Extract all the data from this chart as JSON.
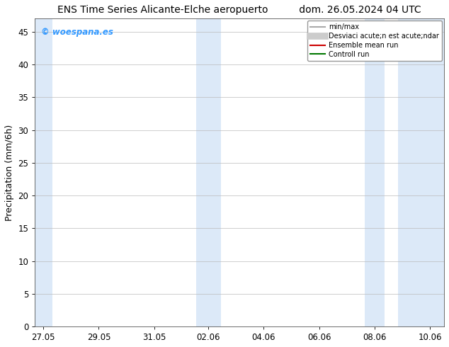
{
  "title_left": "ENS Time Series Alicante-Elche aeropuerto",
  "title_right": "dom. 26.05.2024 04 UTC",
  "ylabel": "Precipitation (mm/6h)",
  "ylim": [
    0,
    47
  ],
  "yticks": [
    0,
    5,
    10,
    15,
    20,
    25,
    30,
    35,
    40,
    45
  ],
  "bg_color": "#ffffff",
  "plot_bg_color": "#ffffff",
  "shaded_color": "#dce9f8",
  "x_ticks_labels": [
    "27.05",
    "29.05",
    "31.05",
    "02.06",
    "04.06",
    "06.06",
    "08.06",
    "10.06"
  ],
  "x_ticks_pos": [
    27.05,
    29.05,
    31.05,
    33.0,
    35.0,
    37.0,
    39.0,
    41.0
  ],
  "xlim": [
    26.75,
    41.5
  ],
  "watermark_text": "© woespana.es",
  "watermark_color": "#3399ff",
  "legend_entries": [
    {
      "label": "min/max",
      "color": "#aaaaaa",
      "lw": 1.5
    },
    {
      "label": "Desviaci acute;n est acute;ndar",
      "color": "#cccccc",
      "lw": 7
    },
    {
      "label": "Ensemble mean run",
      "color": "#cc0000",
      "lw": 1.5
    },
    {
      "label": "Controll run",
      "color": "#007700",
      "lw": 1.5
    }
  ],
  "title_fontsize": 10,
  "tick_fontsize": 8.5,
  "ylabel_fontsize": 9,
  "shaded_regions": [
    {
      "xmin": 26.75,
      "xmax": 27.38
    },
    {
      "xmin": 32.55,
      "xmax": 33.45
    },
    {
      "xmin": 38.65,
      "xmax": 39.35
    },
    {
      "xmin": 39.85,
      "xmax": 41.5
    }
  ]
}
